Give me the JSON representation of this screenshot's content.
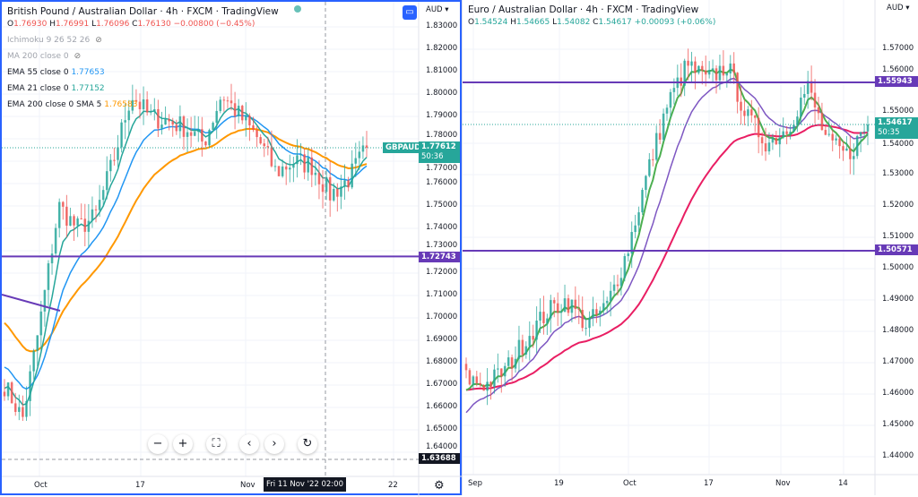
{
  "left_chart": {
    "title": "British Pound / Australian Dollar · 4h · FXCM · TradingView",
    "ohlc": {
      "o_label": "O",
      "o": "1.76930",
      "h_label": "H",
      "h": "1.76991",
      "l_label": "L",
      "l": "1.76096",
      "c_label": "C",
      "c": "1.76130",
      "change": "−0.00800 (−0.45%)"
    },
    "indicators": [
      {
        "label": "Ichimoku 9 26 52 26",
        "value": "",
        "hidden": true
      },
      {
        "label": "MA 200 close 0",
        "value": "",
        "hidden": true
      },
      {
        "label": "EMA 55 close 0",
        "value": "1.77653",
        "color": "#2196f3"
      },
      {
        "label": "EMA 21 close 0",
        "value": "1.77152",
        "color": "#26a69a"
      },
      {
        "label": "EMA 200 close 0 SMA 5",
        "value": "1.76583",
        "color": "#ff9800"
      }
    ],
    "currency": "AUD",
    "price_ticks": [
      "1.83000",
      "1.82000",
      "1.81000",
      "1.80000",
      "1.79000",
      "1.78000",
      "1.77000",
      "1.76000",
      "1.75000",
      "1.74000",
      "1.73000",
      "1.72000",
      "1.71000",
      "1.70000",
      "1.69000",
      "1.68000",
      "1.67000",
      "1.66000",
      "1.65000",
      "1.64000"
    ],
    "time_ticks": [
      "Oct",
      "17",
      "Nov",
      "22"
    ],
    "symbol_tag": "GBPAUD",
    "last_price": "1.77612",
    "countdown": "50:36",
    "hline_label": "1.72743",
    "crosshair_price": "1.63688",
    "crosshair_time": "Fri 11 Nov '22   02:00",
    "nav_buttons": [
      "−",
      "+",
      "⛶",
      "‹",
      "›",
      "↻"
    ],
    "gear_icon": "⚙"
  },
  "right_chart": {
    "title": "Euro / Australian Dollar · 4h · FXCM · TradingView",
    "ohlc": {
      "o_label": "O",
      "o": "1.54524",
      "h_label": "H",
      "h": "1.54665",
      "l_label": "L",
      "l": "1.54082",
      "c_label": "C",
      "c": "1.54617",
      "change": "+0.00093 (+0.06%)"
    },
    "currency": "AUD",
    "price_ticks": [
      "1.57000",
      "1.56000",
      "1.55000",
      "1.54000",
      "1.53000",
      "1.52000",
      "1.51000",
      "1.50000",
      "1.49000",
      "1.48000",
      "1.47000",
      "1.46000",
      "1.45000",
      "1.44000"
    ],
    "time_ticks": [
      "Sep",
      "19",
      "Oct",
      "17",
      "Nov",
      "14"
    ],
    "last_price": "1.54617",
    "countdown": "50:35",
    "hline_top_label": "1.55943",
    "hline_bottom_label": "1.50571"
  },
  "colors": {
    "up": "#26a69a",
    "down": "#ef5350",
    "hline": "#673ab7",
    "ema55": "#2196f3",
    "ema21": "#26a69a",
    "ema200": "#ff9800",
    "r_fast": "#4caf50",
    "r_mid": "#7e57c2",
    "r_slow": "#e91e63",
    "accent": "#2962ff"
  },
  "chart_data": [
    {
      "type": "candlestick",
      "symbol": "GBPAUD",
      "ylim": [
        1.63,
        1.83
      ],
      "hlines": [
        1.72743
      ],
      "close_path": [
        1.67,
        1.655,
        1.7,
        1.75,
        1.74,
        1.745,
        1.77,
        1.8,
        1.79,
        1.788,
        1.785,
        1.778,
        1.8,
        1.79,
        1.78,
        1.765,
        1.77,
        1.768,
        1.755,
        1.762,
        1.776
      ]
    },
    {
      "type": "candlestick",
      "symbol": "EURAUD",
      "ylim": [
        1.435,
        1.58
      ],
      "hlines": [
        1.55943,
        1.50571
      ],
      "close_path": [
        1.465,
        1.463,
        1.468,
        1.478,
        1.486,
        1.49,
        1.482,
        1.488,
        1.505,
        1.53,
        1.552,
        1.565,
        1.56,
        1.565,
        1.548,
        1.54,
        1.545,
        1.558,
        1.54,
        1.536,
        1.546
      ]
    }
  ]
}
